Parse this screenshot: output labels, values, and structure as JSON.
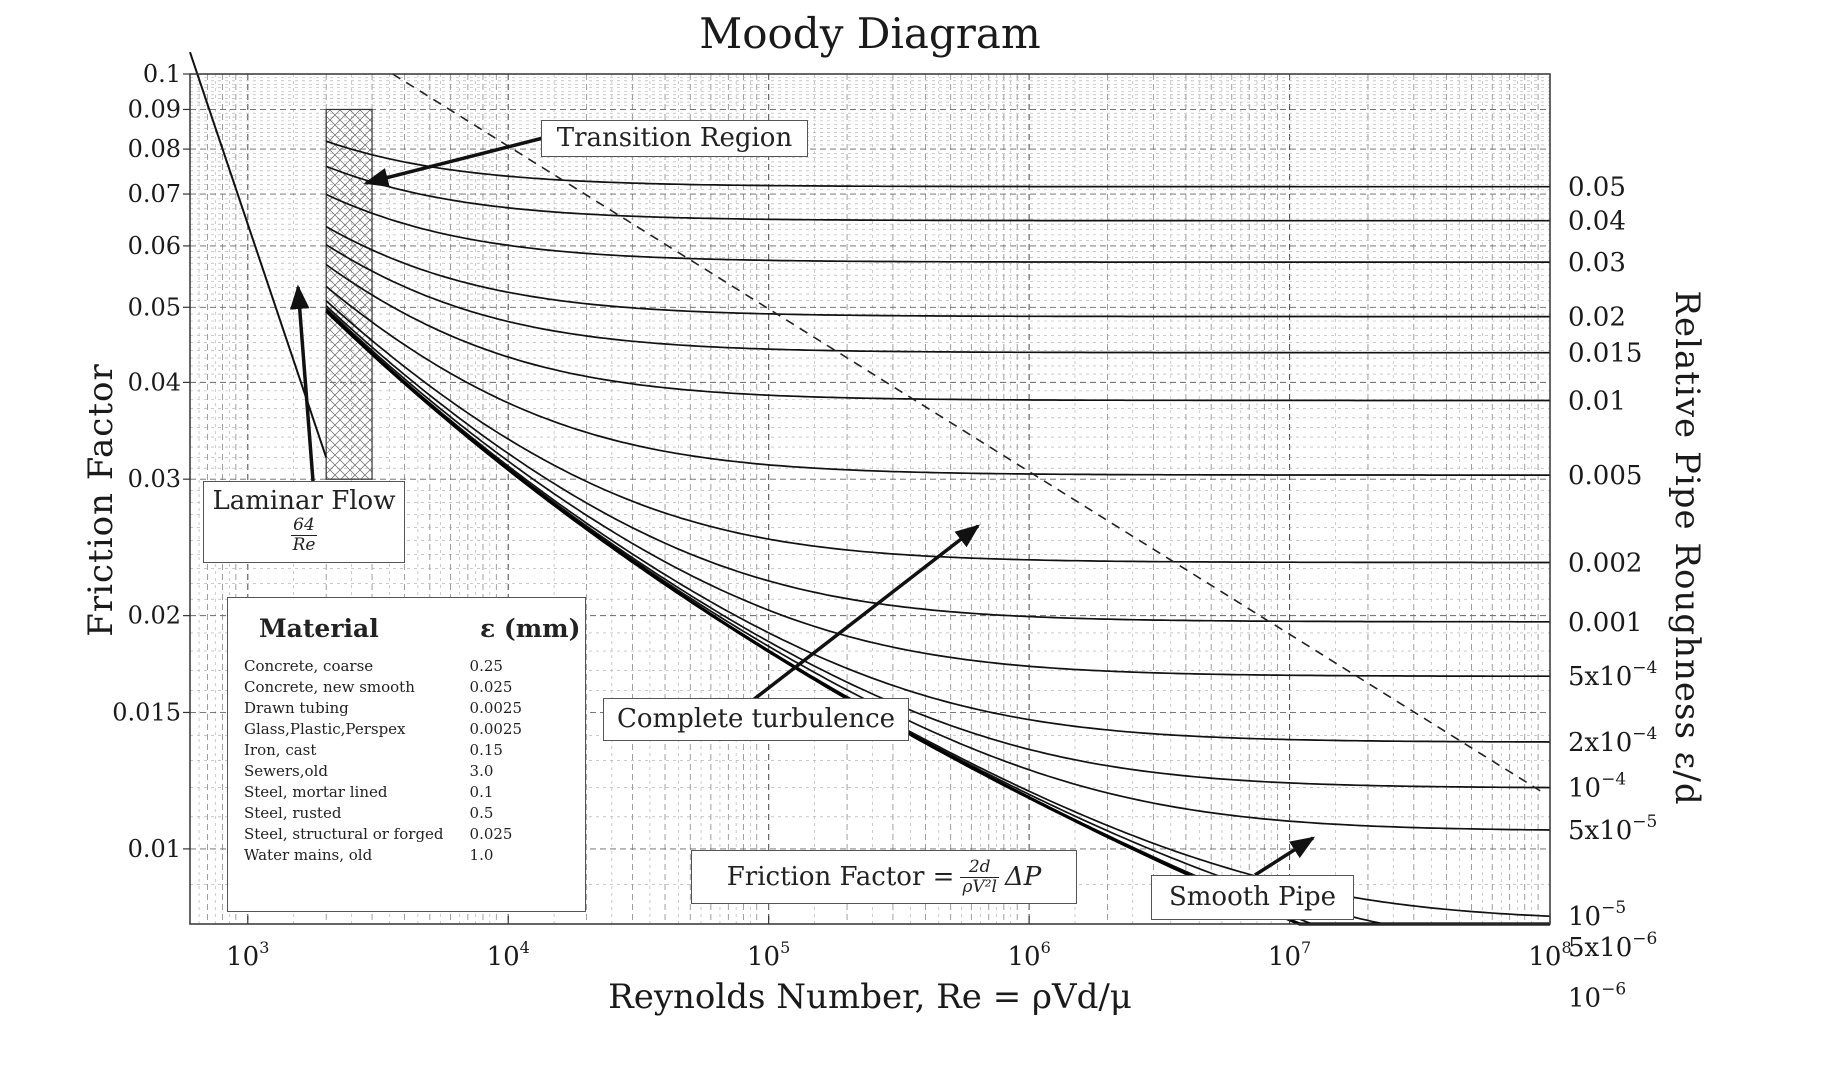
{
  "chart_data": {
    "type": "line",
    "title": "Moody Diagram",
    "xlabel": "Reynolds Number, Re = ρVd/μ",
    "ylabel": "Friction Factor",
    "y2label": "Relative Pipe Roughness ε/d",
    "xscale": "log",
    "yscale": "log",
    "xlim": [
      600,
      100000000
    ],
    "ylim": [
      0.008,
      0.1
    ],
    "grid": true,
    "x_ticks": [
      "10^3",
      "10^4",
      "10^5",
      "10^6",
      "10^7",
      "10^8"
    ],
    "y_ticks": [
      {
        "value": 0.1,
        "label": "0.1"
      },
      {
        "value": 0.09,
        "label": "0.09"
      },
      {
        "value": 0.08,
        "label": "0.08"
      },
      {
        "value": 0.07,
        "label": "0.07"
      },
      {
        "value": 0.06,
        "label": "0.06"
      },
      {
        "value": 0.05,
        "label": "0.05"
      },
      {
        "value": 0.04,
        "label": "0.04"
      },
      {
        "value": 0.03,
        "label": "0.03"
      },
      {
        "value": 0.02,
        "label": "0.02"
      },
      {
        "value": 0.015,
        "label": "0.015"
      },
      {
        "value": 0.01,
        "label": "0.01"
      }
    ],
    "transition_region": {
      "re_min": 2000,
      "re_max": 3000,
      "f_min": 0.03,
      "f_max": 0.09
    },
    "laminar": {
      "label": "Laminar Flow",
      "formula_num": "64",
      "formula_den": "Re",
      "x": [
        600,
        2000
      ],
      "y": [
        0.1067,
        0.032
      ]
    },
    "complete_turbulence_boundary": {
      "x": [
        3600,
        100000000
      ],
      "y": [
        0.1,
        0.0118
      ]
    },
    "roughness_curves": [
      {
        "label": "0.05",
        "value": 0.05
      },
      {
        "label": "0.04",
        "value": 0.04
      },
      {
        "label": "0.03",
        "value": 0.03
      },
      {
        "label": "0.02",
        "value": 0.02
      },
      {
        "label": "0.015",
        "value": 0.015
      },
      {
        "label": "0.01",
        "value": 0.01
      },
      {
        "label": "0.005",
        "value": 0.005
      },
      {
        "label": "0.002",
        "value": 0.002
      },
      {
        "label": "0.001",
        "value": 0.001
      },
      {
        "label": "5x10",
        "exp": "−4",
        "value": 0.0005
      },
      {
        "label": "2x10",
        "exp": "−4",
        "value": 0.0002
      },
      {
        "label": "10",
        "exp": "−4",
        "value": 0.0001
      },
      {
        "label": "5x10",
        "exp": "−5",
        "value": 5e-05
      },
      {
        "label": "10",
        "exp": "−5",
        "value": 1e-05
      },
      {
        "label": "5x10",
        "exp": "−6",
        "value": 5e-06
      },
      {
        "label": "10",
        "exp": "−6",
        "value": 1e-06
      }
    ],
    "smooth_pipe": {
      "value": 0
    },
    "annotations": {
      "transition": "Transition Region",
      "complete": "Complete turbulence",
      "smooth": "Smooth Pipe",
      "friction_formula_prefix": "Friction Factor =",
      "friction_formula_num": "2d",
      "friction_formula_den": "ρV²l",
      "friction_formula_suffix": "ΔP"
    }
  },
  "legend": {
    "header_material": "Material",
    "header_eps": "ε (mm)",
    "rows": [
      {
        "material": "Concrete, coarse",
        "eps": "0.25"
      },
      {
        "material": "Concrete, new smooth",
        "eps": "0.025"
      },
      {
        "material": "Drawn tubing",
        "eps": "0.0025"
      },
      {
        "material": "Glass,Plastic,Perspex",
        "eps": "0.0025"
      },
      {
        "material": "Iron, cast",
        "eps": "0.15"
      },
      {
        "material": "Sewers,old",
        "eps": "3.0"
      },
      {
        "material": "Steel, mortar lined",
        "eps": "0.1"
      },
      {
        "material": "Steel, rusted",
        "eps": "0.5"
      },
      {
        "material": "Steel, structural or forged",
        "eps": "0.025"
      },
      {
        "material": "Water mains, old",
        "eps": "1.0"
      }
    ]
  }
}
